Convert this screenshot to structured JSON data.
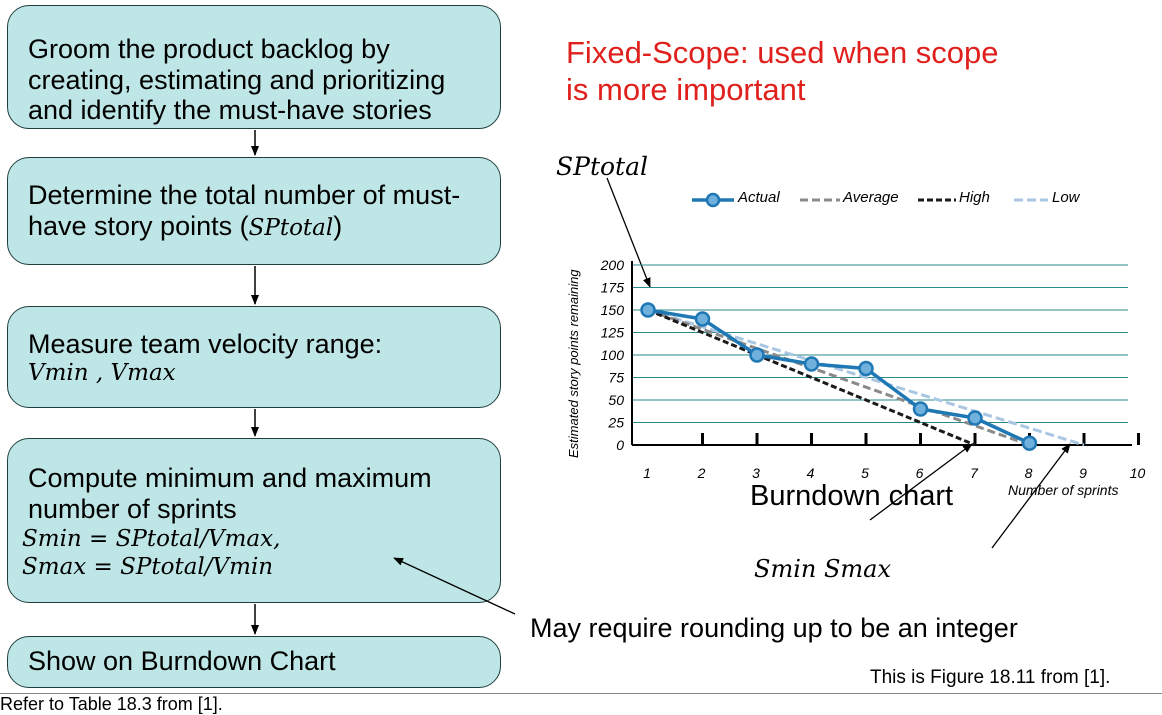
{
  "flow": {
    "step1": "Groom the product backlog by creating, estimating and prioritizing and identify the must-have stories",
    "step2_text": "Determine the total number of must-have story points (",
    "step2_math": "SPtotal",
    "step2_close": ")",
    "step3_text": "Measure team velocity range:",
    "step3_math": "Vmin , Vmax",
    "step4_text": "Compute minimum and maximum number of sprints",
    "step4_f1": "Smin = SPtotal/Vmax,",
    "step4_f2": "Smax = SPtotal/Vmin",
    "step5": "Show on Burndown Chart"
  },
  "title_line1": "Fixed-Scope: used when scope",
  "title_line2": "is more important",
  "annotations": {
    "sptotal": "SPtotal",
    "burndown": "Burndown chart",
    "smin_smax": "Smin  Smax",
    "rounding": "May require rounding up to be an integer",
    "figure_ref": "This is Figure 18.11 from [1].",
    "table_ref": "Refer to Table 18.3 from [1]."
  },
  "colors": {
    "box_fill": "#bfe6e6",
    "title": "#e0201c",
    "actual": "#1f78b4",
    "average": "#8a8a8a",
    "high": "#1a1a1a",
    "low": "#a9c6e3",
    "grid": "#2a8a8a"
  },
  "chart_data": {
    "type": "line",
    "ylabel": "Estimated story points remaining",
    "xlabel": "Number of sprints",
    "x_ticks": [
      1,
      2,
      3,
      4,
      5,
      6,
      7,
      8,
      9,
      10
    ],
    "y_ticks": [
      0,
      25,
      50,
      75,
      100,
      125,
      150,
      175,
      200
    ],
    "xlim": [
      1,
      10
    ],
    "ylim": [
      0,
      200
    ],
    "grid": true,
    "legend_position": "top",
    "series": [
      {
        "name": "Actual",
        "style": "solid-markers",
        "x": [
          1,
          2,
          3,
          4,
          5,
          6,
          7,
          8
        ],
        "values": [
          150,
          140,
          100,
          90,
          85,
          40,
          30,
          2
        ]
      },
      {
        "name": "Average",
        "style": "dashed",
        "x": [
          1,
          8
        ],
        "values": [
          150,
          0
        ]
      },
      {
        "name": "High",
        "style": "dashed",
        "x": [
          1,
          7
        ],
        "values": [
          150,
          0
        ]
      },
      {
        "name": "Low",
        "style": "dashed",
        "x": [
          1,
          9
        ],
        "values": [
          150,
          0
        ]
      }
    ]
  }
}
